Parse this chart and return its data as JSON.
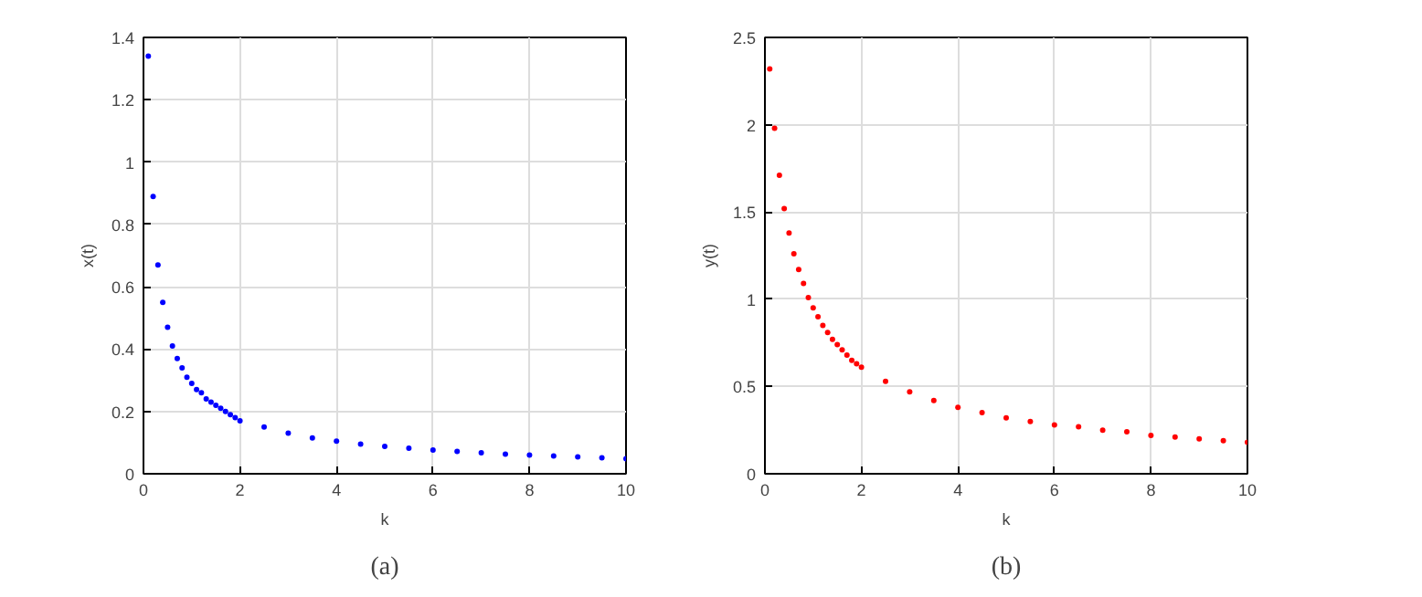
{
  "chart_data": [
    {
      "type": "scatter",
      "xlabel": "k",
      "ylabel": "x(t)",
      "annotations": [
        "(a)"
      ],
      "marker": "circle",
      "grid": true,
      "xlim": [
        0,
        10
      ],
      "xticks": [
        0,
        2,
        4,
        6,
        8,
        10
      ],
      "ylim": [
        0,
        1.4
      ],
      "yticks": [
        0,
        0.2,
        0.4,
        0.6,
        0.8,
        1,
        1.2,
        1.4
      ],
      "x": [
        0.1,
        0.2,
        0.3,
        0.4,
        0.5,
        0.6,
        0.7,
        0.8,
        0.9,
        1.0,
        1.1,
        1.2,
        1.3,
        1.4,
        1.5,
        1.6,
        1.7,
        1.8,
        1.9,
        2.0,
        2.5,
        3,
        3.5,
        4,
        4.5,
        5,
        5.5,
        6,
        6.5,
        7,
        7.5,
        8,
        8.5,
        9,
        9.5,
        10
      ],
      "series": [
        {
          "color": "#0000ff",
          "values": [
            1.34,
            0.89,
            0.67,
            0.55,
            0.47,
            0.41,
            0.37,
            0.34,
            0.31,
            0.29,
            0.27,
            0.26,
            0.24,
            0.23,
            0.22,
            0.21,
            0.2,
            0.19,
            0.18,
            0.17,
            0.15,
            0.13,
            0.115,
            0.105,
            0.095,
            0.088,
            0.082,
            0.076,
            0.072,
            0.067,
            0.063,
            0.06,
            0.057,
            0.054,
            0.051,
            0.048
          ]
        }
      ]
    },
    {
      "type": "scatter",
      "xlabel": "k",
      "ylabel": "y(t)",
      "annotations": [
        "(b)"
      ],
      "marker": "circle",
      "grid": true,
      "xlim": [
        0,
        10
      ],
      "xticks": [
        0,
        2,
        4,
        6,
        8,
        10
      ],
      "ylim": [
        0,
        2.5
      ],
      "yticks": [
        0,
        0.5,
        1,
        1.5,
        2,
        2.5
      ],
      "x": [
        0.1,
        0.2,
        0.3,
        0.4,
        0.5,
        0.6,
        0.7,
        0.8,
        0.9,
        1.0,
        1.1,
        1.2,
        1.3,
        1.4,
        1.5,
        1.6,
        1.7,
        1.8,
        1.9,
        2.0,
        2.5,
        3,
        3.5,
        4,
        4.5,
        5,
        5.5,
        6,
        6.5,
        7,
        7.5,
        8,
        8.5,
        9,
        9.5,
        10
      ],
      "series": [
        {
          "color": "#ff0000",
          "values": [
            2.32,
            1.98,
            1.71,
            1.52,
            1.38,
            1.26,
            1.17,
            1.09,
            1.01,
            0.95,
            0.9,
            0.85,
            0.81,
            0.77,
            0.74,
            0.71,
            0.68,
            0.65,
            0.63,
            0.61,
            0.53,
            0.47,
            0.42,
            0.38,
            0.35,
            0.32,
            0.3,
            0.28,
            0.27,
            0.25,
            0.24,
            0.22,
            0.21,
            0.2,
            0.19,
            0.18
          ]
        }
      ]
    }
  ]
}
